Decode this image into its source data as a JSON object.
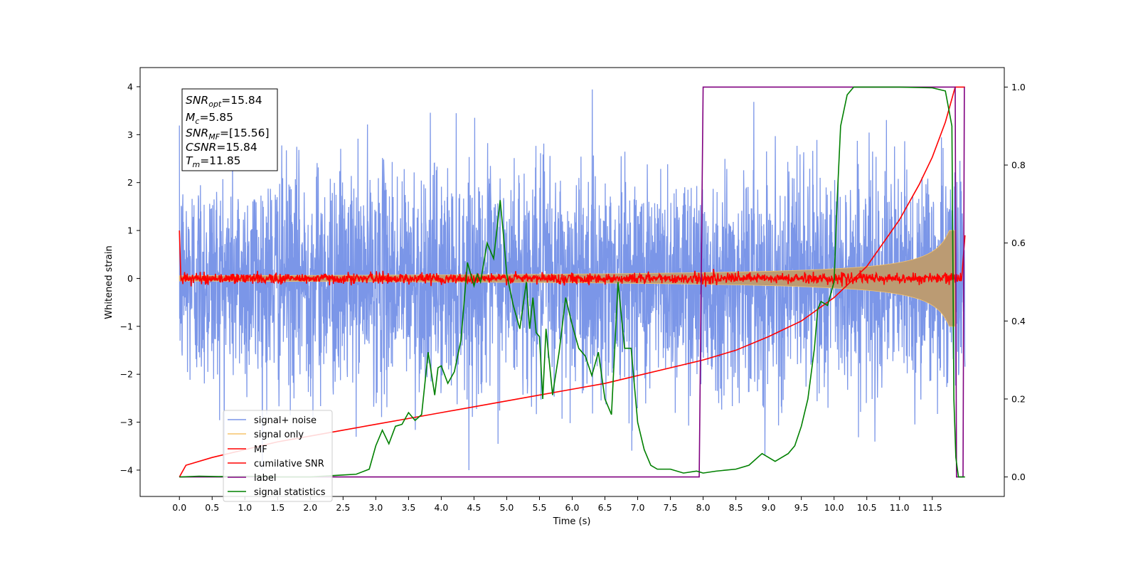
{
  "chart_data": {
    "type": "line",
    "xlabel": "Time (s)",
    "ylabel": "Whitened strain",
    "ylabel_right": "",
    "xlim": [
      -0.6,
      12.6
    ],
    "ylim": [
      -4.55,
      4.4
    ],
    "ylim_right": [
      -0.05,
      1.05
    ],
    "xticks": [
      0.0,
      0.5,
      1.0,
      1.5,
      2.0,
      2.5,
      3.0,
      3.5,
      4.0,
      4.5,
      5.0,
      5.5,
      6.0,
      6.5,
      7.0,
      7.5,
      8.0,
      8.5,
      9.0,
      9.5,
      10.0,
      10.5,
      11.0,
      11.5
    ],
    "xtick_labels": [
      "0.0",
      "0.5",
      "1.0",
      "1.5",
      "2.0",
      "2.5",
      "3.0",
      "3.5",
      "4.0",
      "4.5",
      "5.0",
      "5.5",
      "6.0",
      "6.5",
      "7.0",
      "7.5",
      "8.0",
      "8.5",
      "9.0",
      "9.5",
      "10.0",
      "10.5",
      "11.0",
      "11.5"
    ],
    "yticks": [
      -4,
      -3,
      -2,
      -1,
      0,
      1,
      2,
      3,
      4
    ],
    "ytick_labels": [
      "−4",
      "−3",
      "−2",
      "−1",
      "0",
      "1",
      "2",
      "3",
      "4"
    ],
    "yticks_right": [
      0.0,
      0.2,
      0.4,
      0.6,
      0.8,
      1.0
    ],
    "ytick_labels_right": [
      "0.0",
      "0.2",
      "0.4",
      "0.6",
      "0.8",
      "1.0"
    ],
    "info_box": {
      "snr_opt": {
        "main": "SNR",
        "sub": "opt",
        "value": "=15.84"
      },
      "mc": {
        "main": "M",
        "sub": "c",
        "value": "=5.85"
      },
      "snr_mf": {
        "main": "SNR",
        "sub": "MF",
        "value": "=[15.56]"
      },
      "csnr": {
        "main": "CSNR",
        "value": "=15.84"
      },
      "tm": {
        "main": "T",
        "sub": "m",
        "value": "=11.85"
      }
    },
    "legend_position": "lower-left",
    "series": [
      {
        "name": "signal+ noise",
        "color": "#7b96e8",
        "axis": "left",
        "description_of_shape": "white noise, std ~1.1, spikes to about ±4"
      },
      {
        "name": "signal only",
        "color": "#f5c36b",
        "axis": "left",
        "description_of_shape": "chirp with amplitude growing from ~0.05 at t=0 to ~1.0 at t=11.85"
      },
      {
        "name": "MF",
        "color": "#ff0000",
        "axis": "left",
        "description_of_shape": "noise around 0 (~0.1), starts at 1.0 at t=0, rises to 0.9 at t=12.0"
      },
      {
        "name": "cumilative SNR",
        "color": "#ff0000",
        "axis": "right",
        "x": [
          0.0,
          0.1,
          0.5,
          1.0,
          1.5,
          2.0,
          2.5,
          3.0,
          3.5,
          4.0,
          4.5,
          5.0,
          5.5,
          6.0,
          6.5,
          7.0,
          7.5,
          8.0,
          8.5,
          9.0,
          9.5,
          10.0,
          10.5,
          11.0,
          11.3,
          11.5,
          11.7,
          11.8,
          11.85,
          12.0
        ],
        "y": [
          0.0,
          0.03,
          0.05,
          0.07,
          0.09,
          0.105,
          0.12,
          0.135,
          0.15,
          0.165,
          0.18,
          0.195,
          0.21,
          0.225,
          0.24,
          0.26,
          0.28,
          0.3,
          0.325,
          0.36,
          0.4,
          0.46,
          0.54,
          0.66,
          0.75,
          0.82,
          0.91,
          0.97,
          1.0,
          1.0
        ]
      },
      {
        "name": "label",
        "color": "#800080",
        "axis": "right",
        "x": [
          0.0,
          7.94,
          8.0,
          11.85,
          11.87,
          11.97,
          11.99
        ],
        "y": [
          0.0,
          0.0,
          1.0,
          1.0,
          0.0,
          0.0,
          1.0
        ]
      },
      {
        "name": "signal statistics",
        "color": "#008000",
        "axis": "right",
        "x": [
          0.0,
          0.3,
          0.6,
          1.0,
          1.5,
          2.0,
          2.5,
          2.7,
          2.9,
          3.0,
          3.1,
          3.2,
          3.3,
          3.4,
          3.5,
          3.6,
          3.7,
          3.8,
          3.9,
          3.95,
          4.0,
          4.1,
          4.2,
          4.3,
          4.4,
          4.5,
          4.55,
          4.6,
          4.7,
          4.8,
          4.9,
          4.95,
          5.0,
          5.1,
          5.2,
          5.3,
          5.35,
          5.4,
          5.45,
          5.5,
          5.55,
          5.6,
          5.7,
          5.8,
          5.9,
          6.0,
          6.1,
          6.2,
          6.3,
          6.4,
          6.5,
          6.6,
          6.7,
          6.8,
          6.9,
          7.0,
          7.1,
          7.2,
          7.3,
          7.5,
          7.7,
          7.9,
          8.0,
          8.2,
          8.5,
          8.7,
          8.9,
          9.0,
          9.1,
          9.2,
          9.3,
          9.4,
          9.5,
          9.6,
          9.7,
          9.75,
          9.8,
          9.9,
          10.0,
          10.05,
          10.1,
          10.2,
          10.3,
          10.5,
          11.0,
          11.5,
          11.7,
          11.8,
          11.83,
          11.86,
          11.9,
          12.0
        ],
        "y": [
          0.0,
          0.002,
          0.001,
          0.002,
          0.0,
          0.0,
          0.005,
          0.007,
          0.02,
          0.08,
          0.12,
          0.085,
          0.13,
          0.135,
          0.165,
          0.145,
          0.16,
          0.32,
          0.21,
          0.28,
          0.285,
          0.24,
          0.27,
          0.35,
          0.55,
          0.49,
          0.52,
          0.5,
          0.6,
          0.56,
          0.71,
          0.62,
          0.52,
          0.44,
          0.38,
          0.5,
          0.38,
          0.46,
          0.37,
          0.36,
          0.2,
          0.38,
          0.21,
          0.32,
          0.46,
          0.39,
          0.33,
          0.31,
          0.26,
          0.32,
          0.2,
          0.16,
          0.5,
          0.33,
          0.33,
          0.14,
          0.07,
          0.03,
          0.02,
          0.02,
          0.01,
          0.015,
          0.01,
          0.015,
          0.02,
          0.03,
          0.06,
          0.05,
          0.04,
          0.05,
          0.06,
          0.08,
          0.13,
          0.2,
          0.33,
          0.43,
          0.45,
          0.44,
          0.5,
          0.72,
          0.9,
          0.98,
          1.0,
          1.0,
          1.0,
          0.998,
          0.99,
          0.9,
          0.2,
          0.05,
          0.0,
          0.0
        ]
      }
    ]
  }
}
